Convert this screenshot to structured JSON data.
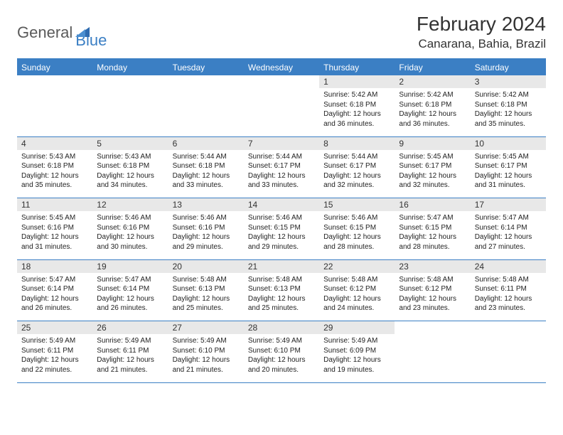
{
  "brand": {
    "name1": "General",
    "name2": "Blue"
  },
  "title": "February 2024",
  "location": "Canarana, Bahia, Brazil",
  "colors": {
    "header_bg": "#3b7fc4",
    "header_text": "#ffffff",
    "daynum_bg": "#e8e8e8",
    "border": "#3b7fc4",
    "text": "#222222"
  },
  "dayHeaders": [
    "Sunday",
    "Monday",
    "Tuesday",
    "Wednesday",
    "Thursday",
    "Friday",
    "Saturday"
  ],
  "weeks": [
    {
      "nums": [
        "",
        "",
        "",
        "",
        "1",
        "2",
        "3"
      ],
      "cells": [
        null,
        null,
        null,
        null,
        {
          "sunrise": "5:42 AM",
          "sunset": "6:18 PM",
          "daylight": "12 hours and 36 minutes."
        },
        {
          "sunrise": "5:42 AM",
          "sunset": "6:18 PM",
          "daylight": "12 hours and 36 minutes."
        },
        {
          "sunrise": "5:42 AM",
          "sunset": "6:18 PM",
          "daylight": "12 hours and 35 minutes."
        }
      ]
    },
    {
      "nums": [
        "4",
        "5",
        "6",
        "7",
        "8",
        "9",
        "10"
      ],
      "cells": [
        {
          "sunrise": "5:43 AM",
          "sunset": "6:18 PM",
          "daylight": "12 hours and 35 minutes."
        },
        {
          "sunrise": "5:43 AM",
          "sunset": "6:18 PM",
          "daylight": "12 hours and 34 minutes."
        },
        {
          "sunrise": "5:44 AM",
          "sunset": "6:18 PM",
          "daylight": "12 hours and 33 minutes."
        },
        {
          "sunrise": "5:44 AM",
          "sunset": "6:17 PM",
          "daylight": "12 hours and 33 minutes."
        },
        {
          "sunrise": "5:44 AM",
          "sunset": "6:17 PM",
          "daylight": "12 hours and 32 minutes."
        },
        {
          "sunrise": "5:45 AM",
          "sunset": "6:17 PM",
          "daylight": "12 hours and 32 minutes."
        },
        {
          "sunrise": "5:45 AM",
          "sunset": "6:17 PM",
          "daylight": "12 hours and 31 minutes."
        }
      ]
    },
    {
      "nums": [
        "11",
        "12",
        "13",
        "14",
        "15",
        "16",
        "17"
      ],
      "cells": [
        {
          "sunrise": "5:45 AM",
          "sunset": "6:16 PM",
          "daylight": "12 hours and 31 minutes."
        },
        {
          "sunrise": "5:46 AM",
          "sunset": "6:16 PM",
          "daylight": "12 hours and 30 minutes."
        },
        {
          "sunrise": "5:46 AM",
          "sunset": "6:16 PM",
          "daylight": "12 hours and 29 minutes."
        },
        {
          "sunrise": "5:46 AM",
          "sunset": "6:15 PM",
          "daylight": "12 hours and 29 minutes."
        },
        {
          "sunrise": "5:46 AM",
          "sunset": "6:15 PM",
          "daylight": "12 hours and 28 minutes."
        },
        {
          "sunrise": "5:47 AM",
          "sunset": "6:15 PM",
          "daylight": "12 hours and 28 minutes."
        },
        {
          "sunrise": "5:47 AM",
          "sunset": "6:14 PM",
          "daylight": "12 hours and 27 minutes."
        }
      ]
    },
    {
      "nums": [
        "18",
        "19",
        "20",
        "21",
        "22",
        "23",
        "24"
      ],
      "cells": [
        {
          "sunrise": "5:47 AM",
          "sunset": "6:14 PM",
          "daylight": "12 hours and 26 minutes."
        },
        {
          "sunrise": "5:47 AM",
          "sunset": "6:14 PM",
          "daylight": "12 hours and 26 minutes."
        },
        {
          "sunrise": "5:48 AM",
          "sunset": "6:13 PM",
          "daylight": "12 hours and 25 minutes."
        },
        {
          "sunrise": "5:48 AM",
          "sunset": "6:13 PM",
          "daylight": "12 hours and 25 minutes."
        },
        {
          "sunrise": "5:48 AM",
          "sunset": "6:12 PM",
          "daylight": "12 hours and 24 minutes."
        },
        {
          "sunrise": "5:48 AM",
          "sunset": "6:12 PM",
          "daylight": "12 hours and 23 minutes."
        },
        {
          "sunrise": "5:48 AM",
          "sunset": "6:11 PM",
          "daylight": "12 hours and 23 minutes."
        }
      ]
    },
    {
      "nums": [
        "25",
        "26",
        "27",
        "28",
        "29",
        "",
        ""
      ],
      "cells": [
        {
          "sunrise": "5:49 AM",
          "sunset": "6:11 PM",
          "daylight": "12 hours and 22 minutes."
        },
        {
          "sunrise": "5:49 AM",
          "sunset": "6:11 PM",
          "daylight": "12 hours and 21 minutes."
        },
        {
          "sunrise": "5:49 AM",
          "sunset": "6:10 PM",
          "daylight": "12 hours and 21 minutes."
        },
        {
          "sunrise": "5:49 AM",
          "sunset": "6:10 PM",
          "daylight": "12 hours and 20 minutes."
        },
        {
          "sunrise": "5:49 AM",
          "sunset": "6:09 PM",
          "daylight": "12 hours and 19 minutes."
        },
        null,
        null
      ]
    }
  ],
  "labels": {
    "sunrise": "Sunrise: ",
    "sunset": "Sunset: ",
    "daylight": "Daylight: "
  }
}
